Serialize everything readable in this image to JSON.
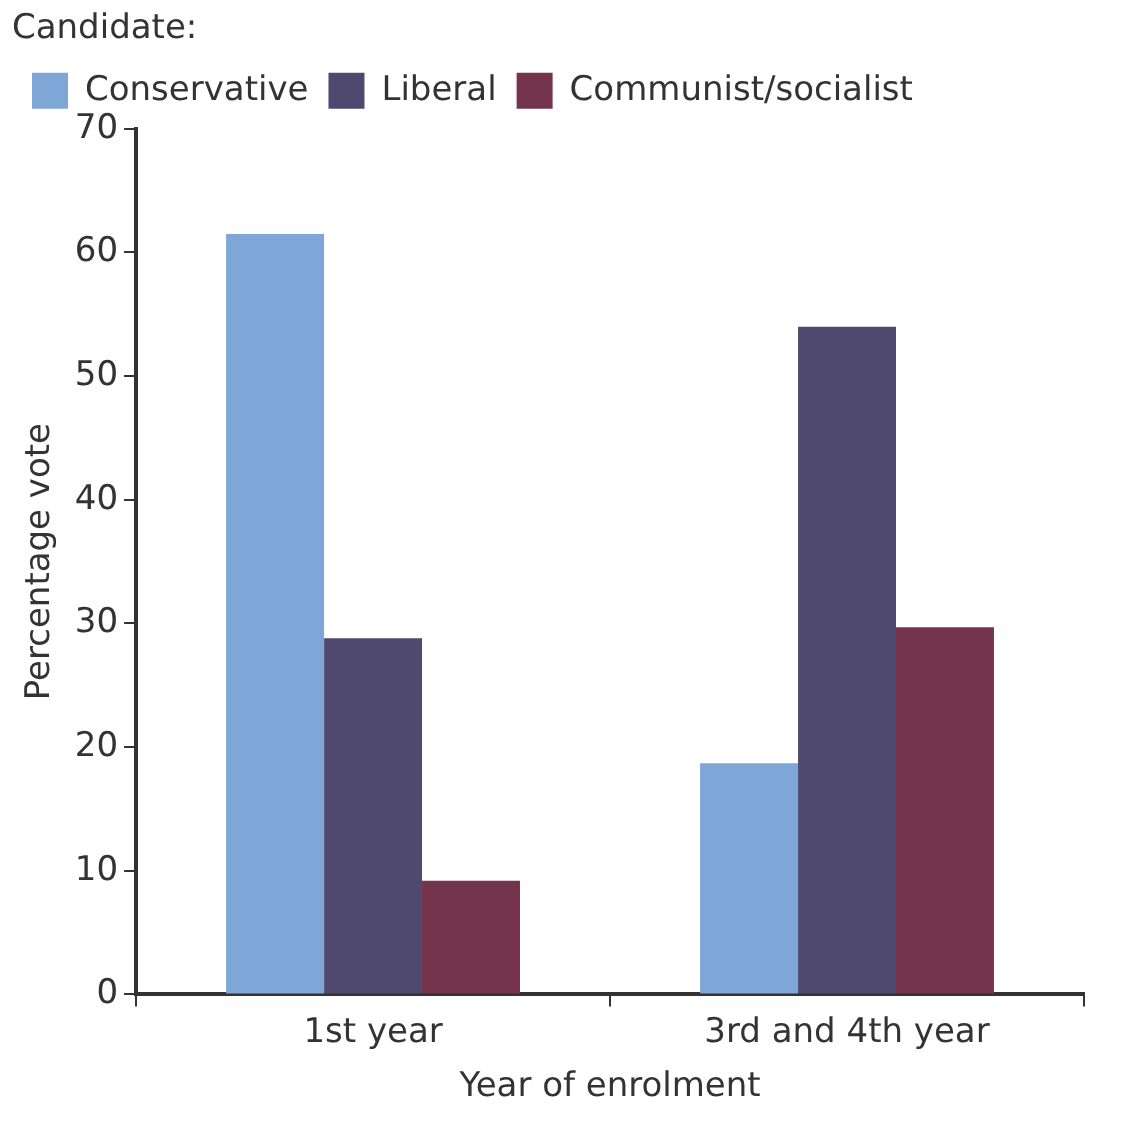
{
  "chart_data": {
    "type": "bar",
    "xlabel": "Year of enrolment",
    "ylabel": "Percentage vote",
    "legend_title": "Candidate:",
    "legend": "top left",
    "categories": [
      "1st year",
      "3rd and 4th year"
    ],
    "series": [
      {
        "name": "Conservative",
        "color": "#7ea7d8",
        "values": [
          61.5,
          18.7
        ]
      },
      {
        "name": "Liberal",
        "color": "#4f4970",
        "values": [
          28.8,
          54
        ]
      },
      {
        "name": "Communist/socialist",
        "color": "#74344b",
        "values": [
          9.2,
          29.7
        ]
      }
    ],
    "ylim": [
      0,
      70
    ],
    "yticks": [
      0,
      10,
      20,
      30,
      40,
      50,
      60,
      70
    ],
    "grid": false
  }
}
